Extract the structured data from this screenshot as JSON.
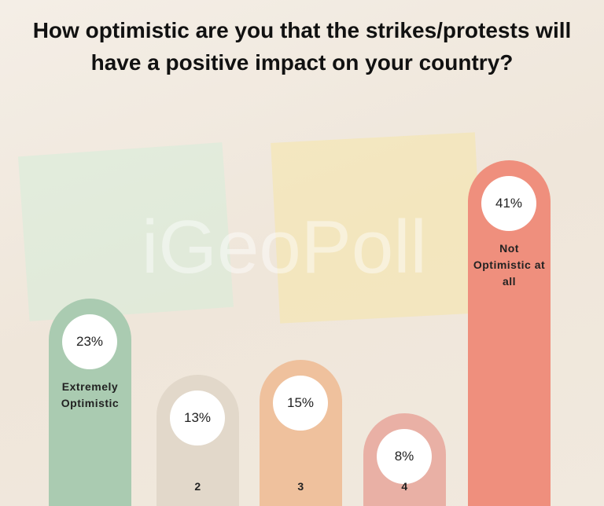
{
  "chart_data": {
    "type": "bar",
    "title": "How optimistic are you that the strikes/protests will have a positive impact on your country?",
    "watermark": "iGeoPoll",
    "categories": [
      "Extremely Optimistic",
      "2",
      "3",
      "4",
      "Not Optimistic at all"
    ],
    "values": [
      23,
      13,
      15,
      8,
      41
    ],
    "value_labels": [
      "23%",
      "13%",
      "15%",
      "8%",
      "41%"
    ],
    "colors": [
      "#aacbb1",
      "#e2d8ca",
      "#efc19d",
      "#e9b0a5",
      "#ef8f7d"
    ]
  }
}
